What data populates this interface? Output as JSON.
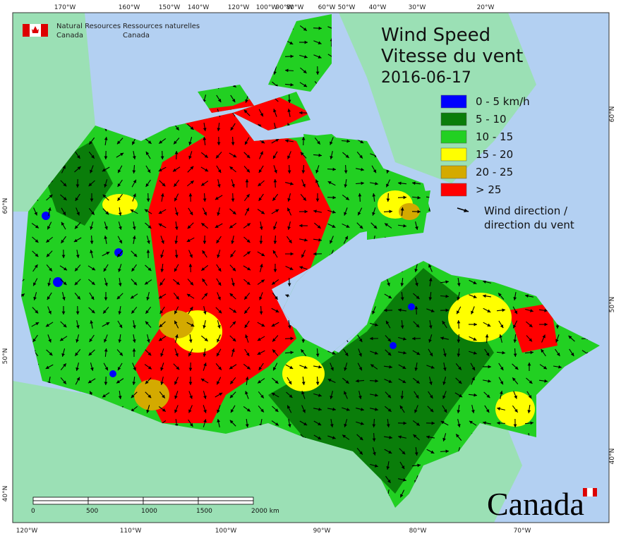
{
  "header": {
    "agency_en": [
      "Natural Resources",
      "Canada"
    ],
    "agency_fr": [
      "Ressources naturelles",
      "Canada"
    ]
  },
  "title": [
    "Wind Speed",
    "Vitesse du vent"
  ],
  "date": "2016-06-17",
  "legend": {
    "items": [
      {
        "label": "0 - 5 km/h",
        "color": "#0000ff"
      },
      {
        "label": "5 - 10",
        "color": "#0a7d0a"
      },
      {
        "label": "10 - 15",
        "color": "#22d022"
      },
      {
        "label": "15 - 20",
        "color": "#ffff00"
      },
      {
        "label": "20 - 25",
        "color": "#d4aa00"
      },
      {
        "label": "> 25",
        "color": "#ff0000"
      }
    ],
    "arrow_label": [
      "Wind direction /",
      "direction du vent"
    ]
  },
  "graticule": {
    "top": [
      "170°W",
      "160°W",
      "150°W",
      "140°W",
      "120°W",
      "100°W",
      "90°W",
      "80°W",
      "60°W",
      "50°W",
      "40°W",
      "30°W",
      "20°W"
    ],
    "bottom": [
      "120°W",
      "110°W",
      "100°W",
      "90°W",
      "80°W",
      "70°W"
    ],
    "left": [
      "60°N",
      "50°N",
      "40°N"
    ],
    "right": [
      "60°N",
      "50°N",
      "40°N"
    ]
  },
  "scale_bar": {
    "labels": [
      "0",
      "500",
      "1000",
      "1500",
      "2000 km"
    ]
  },
  "wordmark": "Canada"
}
